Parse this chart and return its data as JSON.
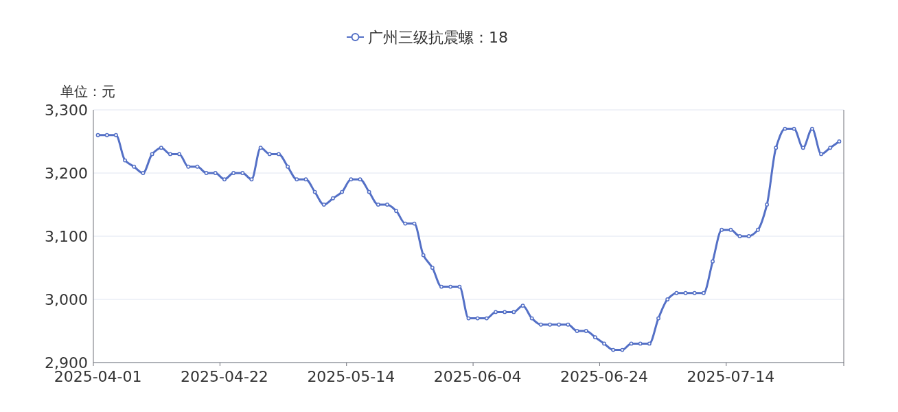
{
  "chart_data": {
    "type": "line",
    "ylabel": "单位：元",
    "categories": [
      "2025-04-01",
      null,
      null,
      null,
      null,
      null,
      null,
      null,
      null,
      null,
      null,
      null,
      null,
      null,
      "2025-04-22",
      null,
      null,
      null,
      null,
      null,
      null,
      null,
      null,
      null,
      null,
      null,
      null,
      null,
      "2025-05-14",
      null,
      null,
      null,
      null,
      null,
      null,
      null,
      null,
      null,
      null,
      null,
      null,
      null,
      "2025-06-04",
      null,
      null,
      null,
      null,
      null,
      null,
      null,
      null,
      null,
      null,
      null,
      null,
      null,
      "2025-06-24",
      null,
      null,
      null,
      null,
      null,
      null,
      null,
      null,
      null,
      null,
      null,
      null,
      null,
      "2025-07-14",
      null,
      null,
      null,
      null,
      null,
      null,
      null,
      null,
      null,
      null,
      null,
      null
    ],
    "series": [
      {
        "name": "广州三级抗震螺：18",
        "color": "#5470c6",
        "values": [
          3260,
          3260,
          3260,
          3220,
          3210,
          3200,
          3230,
          3240,
          3230,
          3230,
          3210,
          3210,
          3200,
          3200,
          3190,
          3200,
          3200,
          3190,
          3240,
          3230,
          3230,
          3210,
          3190,
          3190,
          3170,
          3150,
          3160,
          3170,
          3190,
          3190,
          3170,
          3150,
          3150,
          3140,
          3120,
          3120,
          3070,
          3050,
          3020,
          3020,
          3020,
          2970,
          2970,
          2970,
          2980,
          2980,
          2980,
          2990,
          2970,
          2960,
          2960,
          2960,
          2960,
          2950,
          2950,
          2940,
          2930,
          2920,
          2920,
          2930,
          2930,
          2930,
          2970,
          3000,
          3010,
          3010,
          3010,
          3010,
          3060,
          3110,
          3110,
          3100,
          3100,
          3110,
          3150,
          3240,
          3270,
          3270,
          3240,
          3270,
          3230,
          3240,
          3250
        ]
      }
    ],
    "ylim": [
      2900,
      3300
    ],
    "yticks": [
      {
        "value": 2900,
        "label": "2,900"
      },
      {
        "value": 3000,
        "label": "3,000"
      },
      {
        "value": 3100,
        "label": "3,100"
      },
      {
        "value": 3200,
        "label": "3,200"
      },
      {
        "value": 3300,
        "label": "3,300"
      }
    ],
    "grid": "y",
    "legend": "top",
    "marker": "circle",
    "line_style": "solid"
  }
}
